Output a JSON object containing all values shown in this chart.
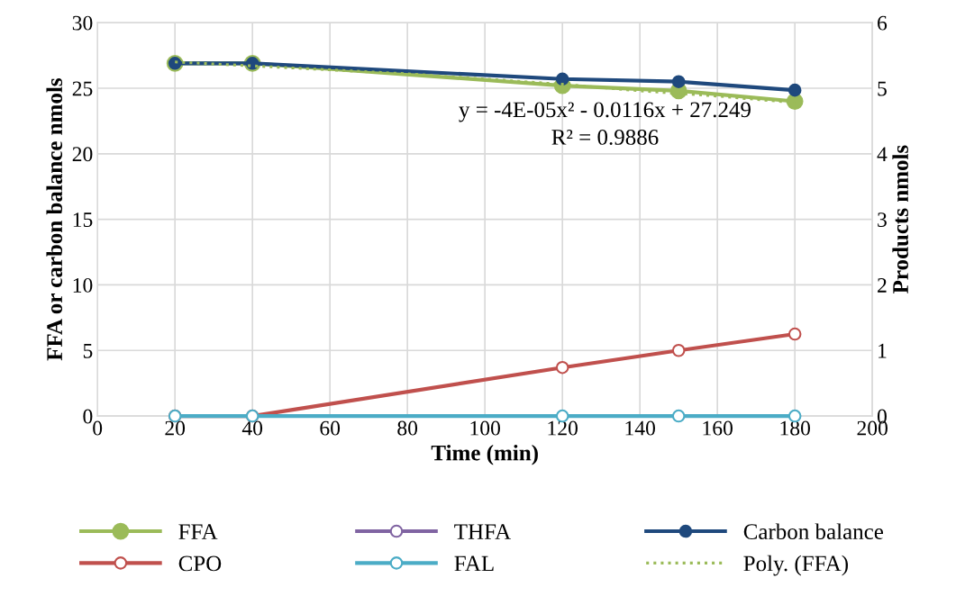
{
  "chart_data": {
    "type": "line",
    "xlabel": "Time (min)",
    "ylabel": "FFA or carbon balance nmols",
    "y2label": "Products nmols",
    "x": [
      20,
      40,
      120,
      150,
      180
    ],
    "series": [
      {
        "name": "FFA",
        "color": "#9bbb59",
        "values": [
          26.9,
          26.9,
          25.2,
          24.8,
          24.0
        ],
        "marker": "circle"
      },
      {
        "name": "CPO",
        "color": "#c0504d",
        "values": [
          0,
          0,
          0.74,
          1.0,
          1.25
        ],
        "axis": "y2",
        "marker": "circle"
      },
      {
        "name": "THFA",
        "color": "#8064a2",
        "values": [
          null,
          null,
          null,
          null,
          null
        ],
        "axis": "y2",
        "marker": "circle"
      },
      {
        "name": "FAL",
        "color": "#4bacc6",
        "values": [
          0,
          0,
          0,
          0,
          0
        ],
        "axis": "y2",
        "marker": "circle"
      },
      {
        "name": "Carbon balance",
        "color": "#1f497d",
        "values": [
          26.9,
          26.9,
          25.7,
          25.5,
          24.85
        ],
        "marker": "circle"
      },
      {
        "name": "Poly. (FFA)",
        "color": "#9bbb59",
        "x": [
          20,
          40,
          60,
          80,
          100,
          120,
          140,
          160,
          180
        ],
        "values": [
          27.0,
          26.7,
          26.4,
          26.1,
          25.7,
          25.3,
          24.8,
          24.4,
          23.9
        ],
        "marker": "none",
        "line_style": "dotted"
      }
    ],
    "xlim": [
      0,
      200
    ],
    "xticks": [
      0,
      20,
      40,
      60,
      80,
      100,
      120,
      140,
      160,
      180,
      200
    ],
    "ylim": [
      0,
      30
    ],
    "yticks": [
      0,
      5,
      10,
      15,
      20,
      25,
      30
    ],
    "y2lim": [
      0,
      6
    ],
    "y2ticks": [
      0,
      1,
      2,
      3,
      4,
      5,
      6
    ],
    "annotations": [
      "y = -4E-05x² - 0.0116x + 27.249",
      "R² = 0.9886"
    ],
    "grid": true,
    "legend": "bottom"
  }
}
